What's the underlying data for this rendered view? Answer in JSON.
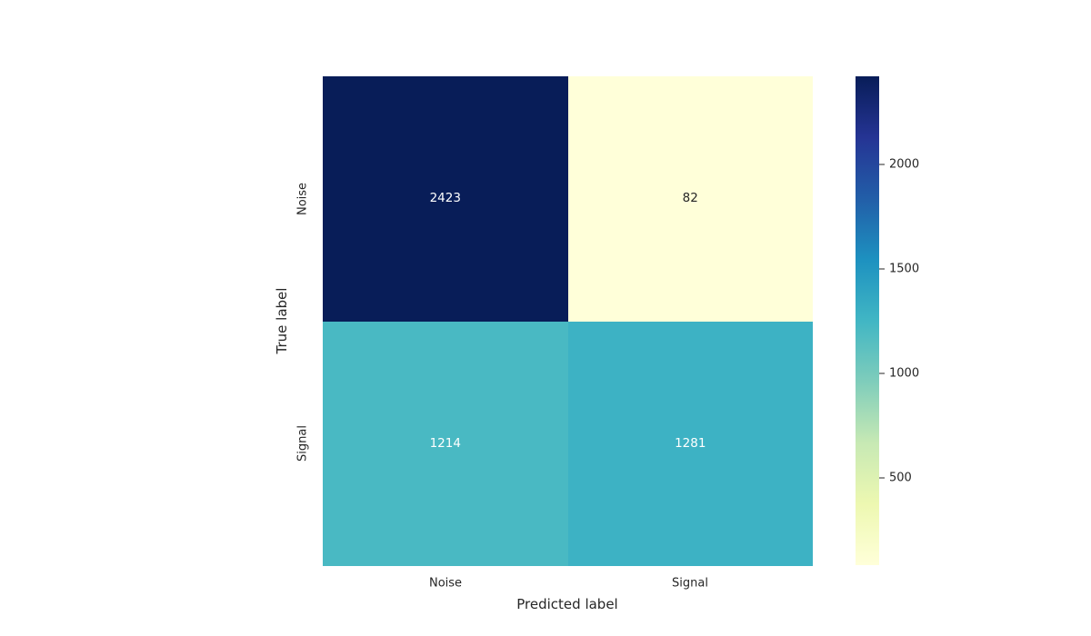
{
  "figure": {
    "background": "#ffffff",
    "text_color": "#262626"
  },
  "chart_data": {
    "type": "heatmap",
    "title": "",
    "xlabel": "Predicted label",
    "ylabel": "True label",
    "x_categories": [
      "Noise",
      "Signal"
    ],
    "y_categories": [
      "Noise",
      "Signal"
    ],
    "values": [
      [
        2423,
        82
      ],
      [
        1214,
        1281
      ]
    ],
    "vmin": 82,
    "vmax": 2423,
    "colormap": "YlGnBu",
    "grid": false,
    "legend_position": "right-colorbar",
    "cells": [
      {
        "value": "2423",
        "bg": "#081d58",
        "fg": "#ffffff"
      },
      {
        "value": "82",
        "bg": "#ffffd9",
        "fg": "#262626"
      },
      {
        "value": "1214",
        "bg": "#49b9c3",
        "fg": "#ffffff"
      },
      {
        "value": "1281",
        "bg": "#3db2c4",
        "fg": "#ffffff"
      }
    ],
    "colorbar": {
      "ticks": [
        "2000",
        "1500",
        "1000",
        "500"
      ],
      "gradient_top_to_bottom": [
        "#081d58",
        "#253494",
        "#225ea8",
        "#1d91c0",
        "#41b6c4",
        "#7fcdbb",
        "#c7e9b4",
        "#edf8b1",
        "#ffffd9"
      ]
    }
  }
}
